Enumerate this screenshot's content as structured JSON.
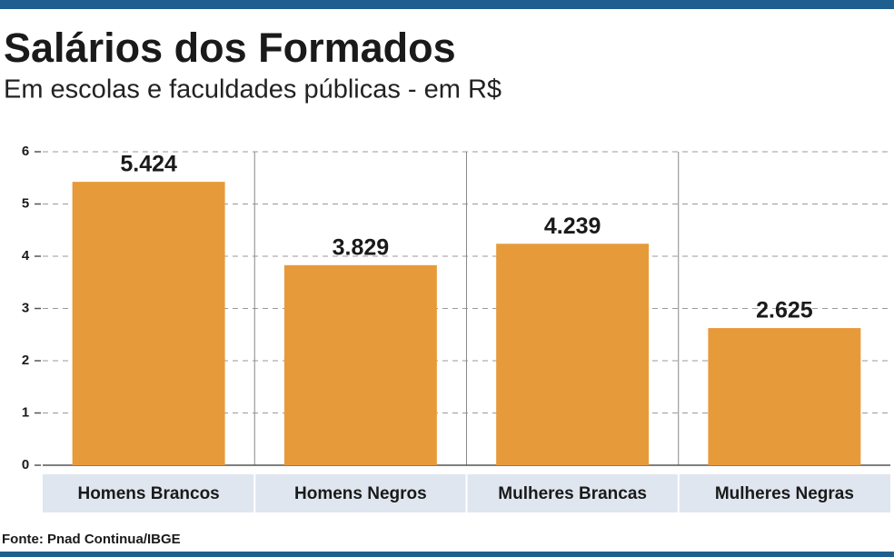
{
  "chart_data": {
    "type": "bar",
    "title": "Salários dos Formados",
    "subtitle": "Em escolas e faculdades públicas - em R$",
    "categories": [
      "Homens Brancos",
      "Homens Negros",
      "Mulheres Brancas",
      "Mulheres Negras"
    ],
    "values": [
      5.424,
      3.829,
      4.239,
      2.625
    ],
    "color": "#e69a3a",
    "ylim": [
      0,
      6
    ],
    "yticks": [
      0,
      1,
      2,
      3,
      4,
      5,
      6
    ],
    "grid": true,
    "source": "Fonte: Pnad Continua/IBGE"
  }
}
